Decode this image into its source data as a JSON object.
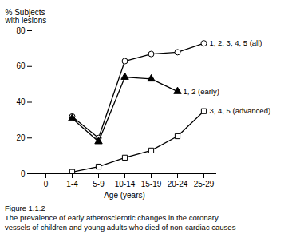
{
  "chart_data": {
    "type": "line",
    "xlabel": "Age (years)",
    "ylabel": "% Subjects\nwith lesions",
    "categories": [
      "0",
      "1-4",
      "5-9",
      "10-14",
      "15-19",
      "20-24",
      "25-29"
    ],
    "series": [
      {
        "name": "1, 2, 3, 4, 5 (all)",
        "color": "black",
        "marker": "circle-open",
        "values": [
          null,
          32,
          20,
          63,
          67,
          68,
          73
        ]
      },
      {
        "name": "1, 2 (early)",
        "color": "black",
        "marker": "triangle",
        "values": [
          null,
          31,
          18,
          54,
          53,
          46,
          null
        ]
      },
      {
        "name": "3, 4, 5 (advanced)",
        "color": "black",
        "marker": "square-open",
        "values": [
          null,
          1,
          4,
          9,
          13,
          21,
          35
        ]
      }
    ],
    "ylim": [
      0,
      80
    ],
    "yticks": [
      0,
      20,
      40,
      60,
      80
    ],
    "caption": [
      "Figure 1.1.2",
      "The prevalence of early atherosclerotic changes in the coronary",
      "vessels of children and young adults who died of non-cardiac causes"
    ]
  }
}
